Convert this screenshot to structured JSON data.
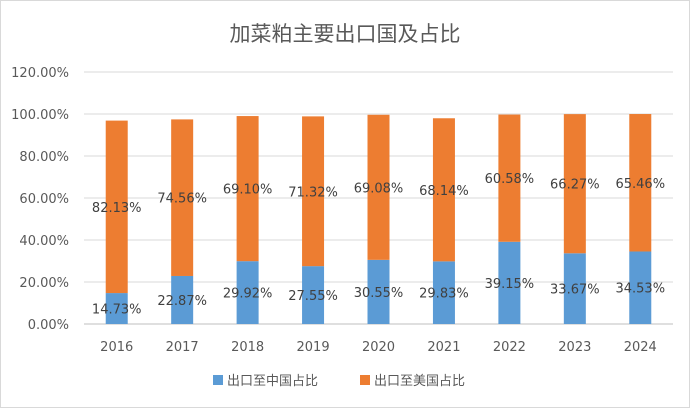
{
  "chart_data": {
    "type": "bar",
    "stacked": true,
    "title": "加菜粕主要出口国及占比",
    "xlabel": "",
    "ylabel": "",
    "ylim": [
      0,
      120
    ],
    "yticks": [
      "0.00%",
      "20.00%",
      "40.00%",
      "60.00%",
      "80.00%",
      "100.00%",
      "120.00%"
    ],
    "ytick_values": [
      0,
      20,
      40,
      60,
      80,
      100,
      120
    ],
    "grid": true,
    "legend_position": "bottom",
    "categories": [
      "2016",
      "2017",
      "2018",
      "2019",
      "2020",
      "2021",
      "2022",
      "2023",
      "2024"
    ],
    "series": [
      {
        "name": "出口至中国占比",
        "color": "#5b9bd5",
        "values": [
          14.73,
          22.87,
          29.92,
          27.55,
          30.55,
          29.83,
          39.15,
          33.67,
          34.53
        ],
        "labels": [
          "14.73%",
          "22.87%",
          "29.92%",
          "27.55%",
          "30.55%",
          "29.83%",
          "39.15%",
          "33.67%",
          "34.53%"
        ]
      },
      {
        "name": "出口至美国占比",
        "color": "#ed7d31",
        "values": [
          82.13,
          74.56,
          69.1,
          71.32,
          69.08,
          68.14,
          60.58,
          66.27,
          65.46
        ],
        "labels": [
          "82.13%",
          "74.56%",
          "69.10%",
          "71.32%",
          "69.08%",
          "68.14%",
          "60.58%",
          "66.27%",
          "65.46%"
        ]
      }
    ]
  }
}
